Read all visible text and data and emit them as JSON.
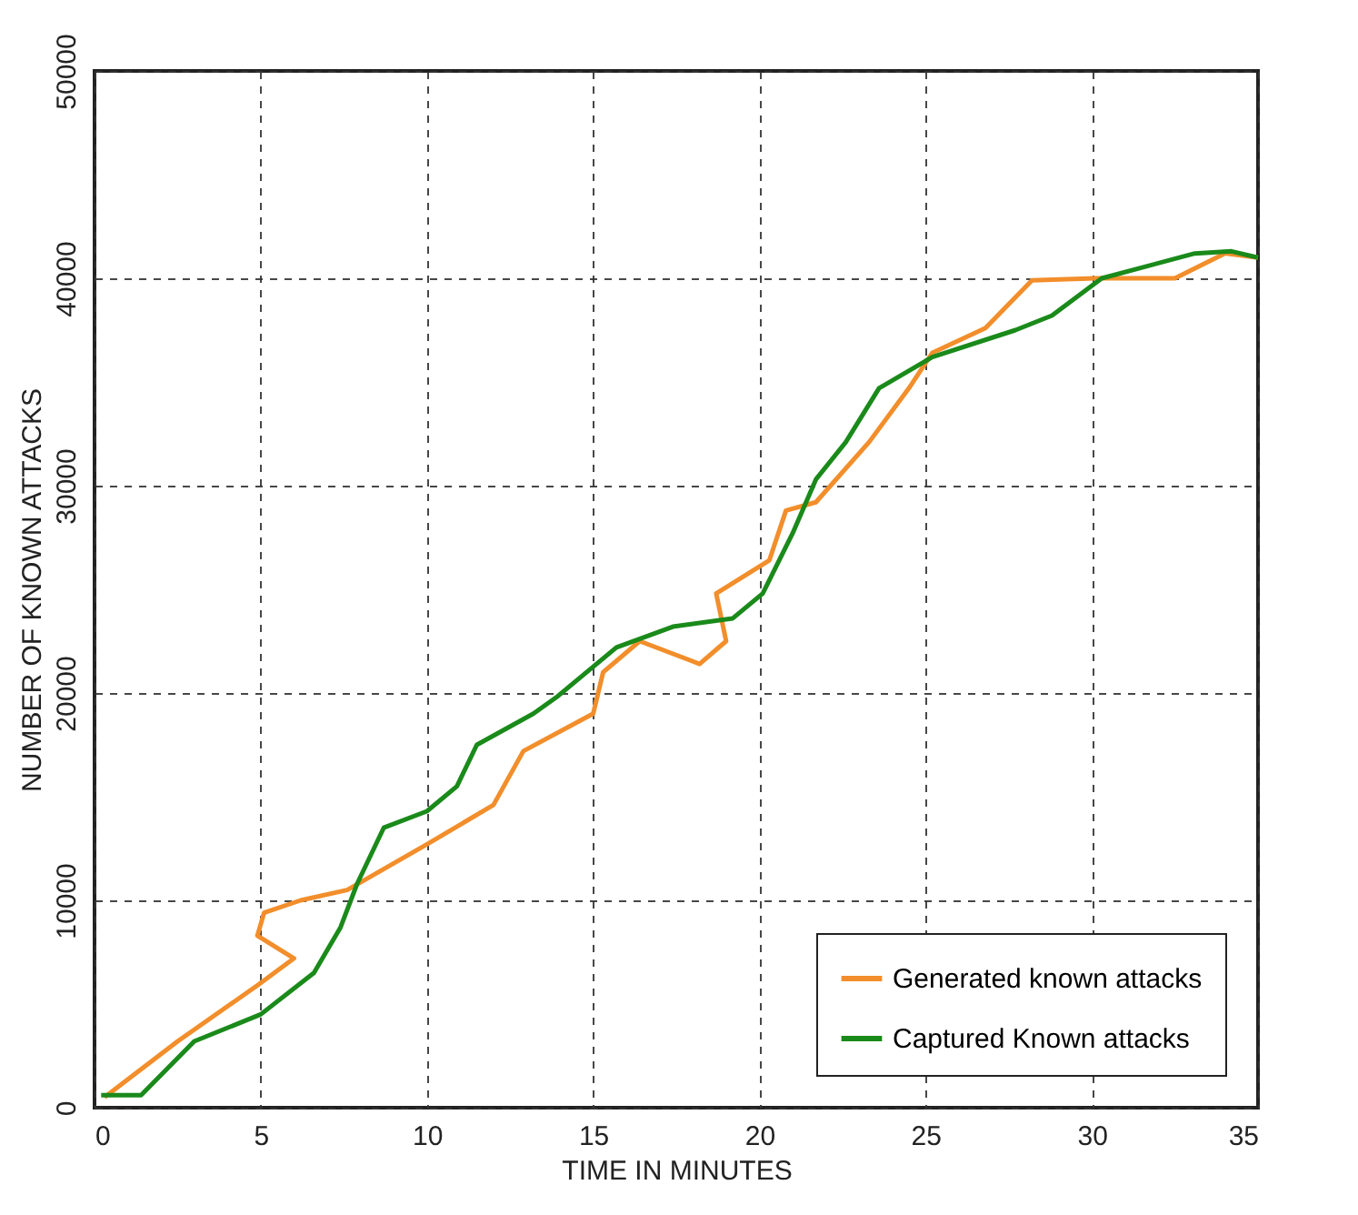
{
  "chart_data": {
    "type": "line",
    "xlabel": "TIME IN MINUTES",
    "ylabel": "NUMBER OF KNOWN ATTACKS",
    "xlim": [
      0,
      35
    ],
    "xticks": [
      0,
      5,
      10,
      15,
      20,
      25,
      30,
      35
    ],
    "ylim": [
      0,
      50000
    ],
    "yticks": [
      0,
      10000,
      20000,
      30000,
      40000,
      50000
    ],
    "grid": true,
    "legend": "bottom right",
    "line_style": "solid",
    "marker": "none",
    "series": [
      {
        "name": "Generated known attacks",
        "color": "#f28e2b",
        "x": [
          0.3,
          2.5,
          4.9,
          6.0,
          4.9,
          5.1,
          6.2,
          7.6,
          10.0,
          12.0,
          12.9,
          15.0,
          15.3,
          16.4,
          18.2,
          19.0,
          18.7,
          20.3,
          20.8,
          21.7,
          23.3,
          24.5,
          25.2,
          26.8,
          28.2,
          30.1,
          32.5,
          34.0,
          35.0
        ],
        "values": [
          500,
          3200,
          5900,
          7200,
          8300,
          9400,
          10000,
          10500,
          12700,
          14600,
          17200,
          19000,
          21000,
          22500,
          21400,
          22500,
          24800,
          26400,
          28800,
          29200,
          32100,
          34700,
          36400,
          37600,
          39900,
          40000,
          40000,
          41200,
          41000
        ]
      },
      {
        "name": "Captured Known attacks",
        "color": "#1a8a1a",
        "x": [
          0.2,
          1.4,
          3.0,
          5.0,
          6.6,
          7.4,
          7.9,
          8.7,
          10.0,
          10.9,
          11.5,
          13.2,
          13.9,
          15.7,
          17.4,
          19.2,
          20.1,
          21.0,
          21.7,
          22.6,
          23.6,
          25.2,
          27.7,
          28.8,
          30.3,
          33.1,
          34.2,
          35.0
        ],
        "values": [
          600,
          600,
          3200,
          4500,
          6500,
          8700,
          10800,
          13500,
          14300,
          15500,
          17500,
          19000,
          19800,
          22200,
          23200,
          23600,
          24800,
          27700,
          30300,
          32100,
          34700,
          36200,
          37500,
          38200,
          40000,
          41200,
          41300,
          41000
        ]
      }
    ]
  }
}
